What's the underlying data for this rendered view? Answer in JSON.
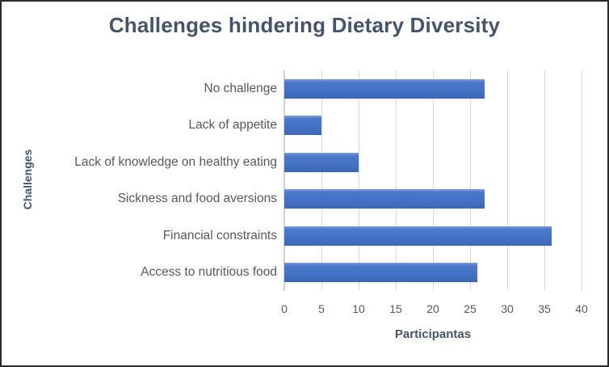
{
  "chart_data": {
    "type": "bar",
    "orientation": "horizontal",
    "title": "Challenges hindering Dietary Diversity",
    "categories": [
      "No challenge",
      "Lack of appetite",
      "Lack of knowledge on healthy eating",
      "Sickness and food aversions",
      "Financial constraints",
      "Access to nutritious food"
    ],
    "values": [
      27,
      5,
      10,
      27,
      36,
      26
    ],
    "xlabel": "Participantas",
    "ylabel": "Challenges",
    "xlim": [
      0,
      40
    ],
    "xticks": [
      0,
      5,
      10,
      15,
      20,
      25,
      30,
      35,
      40
    ],
    "grid": true,
    "legend": "none",
    "colors": {
      "bar": "#4472c4",
      "title": "#44546a",
      "labels": "#595959",
      "gridlines": "#d9d9d9",
      "border": "#2b2b2b",
      "background": "#ffffff"
    }
  }
}
